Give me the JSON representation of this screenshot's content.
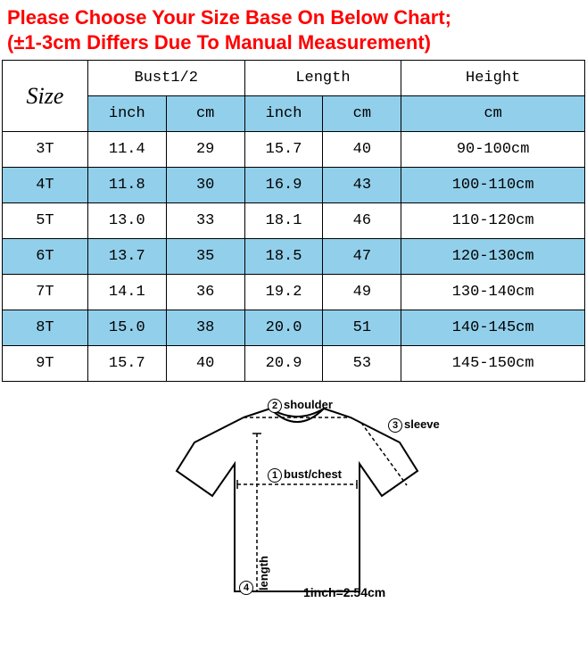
{
  "header": {
    "line1": "Please Choose Your Size Base On Below Chart;",
    "line2": "(±1-3cm Differs Due To Manual Measurement)",
    "color": "#ff0000",
    "fontsize": 22
  },
  "table": {
    "type": "table",
    "alt_row_color": "#92cfea",
    "border_color": "#000000",
    "columns": {
      "size": "Size",
      "bust": "Bust1/2",
      "length": "Length",
      "height": "Height",
      "sub_inch": "inch",
      "sub_cm": "cm"
    },
    "rows": [
      {
        "size": "3T",
        "bust_in": "11.4",
        "bust_cm": "29",
        "len_in": "15.7",
        "len_cm": "40",
        "height": "90-100cm"
      },
      {
        "size": "4T",
        "bust_in": "11.8",
        "bust_cm": "30",
        "len_in": "16.9",
        "len_cm": "43",
        "height": "100-110cm"
      },
      {
        "size": "5T",
        "bust_in": "13.0",
        "bust_cm": "33",
        "len_in": "18.1",
        "len_cm": "46",
        "height": "110-120cm"
      },
      {
        "size": "6T",
        "bust_in": "13.7",
        "bust_cm": "35",
        "len_in": "18.5",
        "len_cm": "47",
        "height": "120-130cm"
      },
      {
        "size": "7T",
        "bust_in": "14.1",
        "bust_cm": "36",
        "len_in": "19.2",
        "len_cm": "49",
        "height": "130-140cm"
      },
      {
        "size": "8T",
        "bust_in": "15.0",
        "bust_cm": "38",
        "len_in": "20.0",
        "len_cm": "51",
        "height": "140-145cm"
      },
      {
        "size": "9T",
        "bust_in": "15.7",
        "bust_cm": "40",
        "len_in": "20.9",
        "len_cm": "53",
        "height": "145-150cm"
      }
    ]
  },
  "diagram": {
    "labels": {
      "shoulder": "shoulder",
      "sleeve": "sleeve",
      "bust": "bust/chest",
      "length": "length"
    },
    "numbers": {
      "bust": "1",
      "shoulder": "2",
      "sleeve": "3",
      "length": "4"
    },
    "note": "1inch=2.54cm",
    "outline_color": "#000000",
    "fill_color": "#ffffff"
  }
}
